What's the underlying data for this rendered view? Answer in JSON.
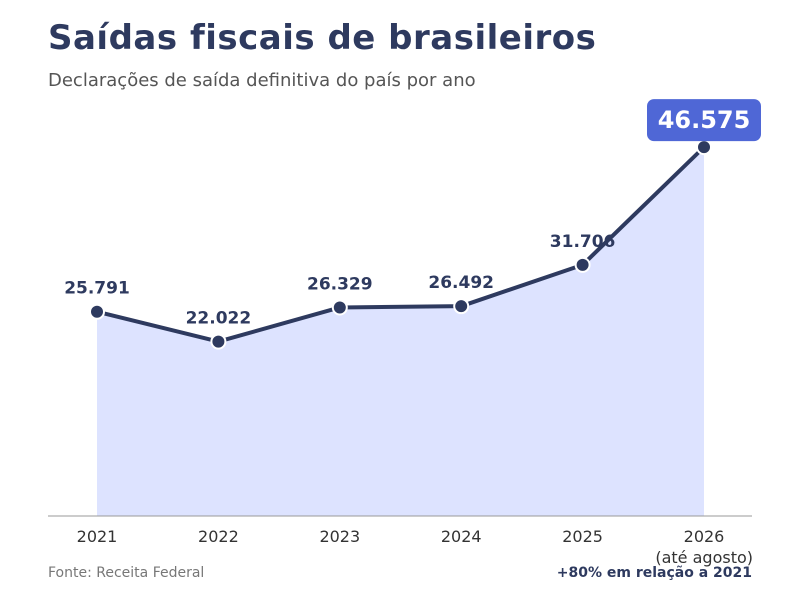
{
  "header": {
    "title": "Saídas fiscais de brasileiros",
    "subtitle": "Declarações de saída definitiva do país por ano"
  },
  "footer": {
    "source": "Fonte: Receita Federal",
    "note": "+80% em relação a 2021"
  },
  "colors": {
    "line": "#2e3a5f",
    "area": "#dde3ff",
    "highlight_box": "#4f67d6",
    "axis": "#999999"
  },
  "chart_data": {
    "type": "area",
    "title": "",
    "xlabel": "",
    "ylabel": "",
    "categories": [
      "2021",
      "2022",
      "2023",
      "2024",
      "2025",
      "2026"
    ],
    "category_sublabels": [
      "",
      "",
      "",
      "",
      "",
      "(até agosto)"
    ],
    "series": [
      {
        "values": [
          25791,
          22022,
          26329,
          26492,
          31706,
          46575
        ],
        "data_labels": [
          "25.791",
          "22.022",
          "26.329",
          "26.492",
          "31.706",
          "46.575"
        ]
      }
    ],
    "highlight_index": 5,
    "ylim": [
      0,
      50000
    ],
    "grid": false,
    "legend": "none"
  }
}
